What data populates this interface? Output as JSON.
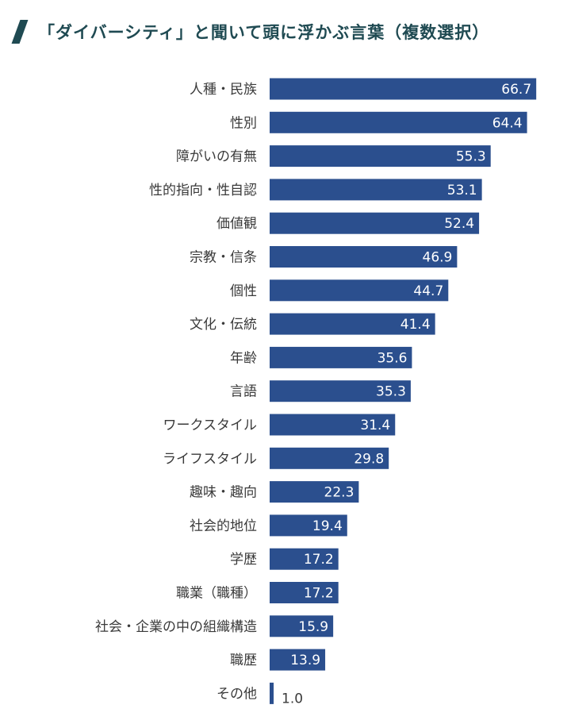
{
  "header": {
    "icon": "slash-icon",
    "accent_color": "#1f4a52",
    "title": "「ダイバーシティ」と聞いて頭に浮かぶ言葉（複数選択）"
  },
  "chart_data": {
    "type": "bar",
    "orientation": "horizontal",
    "title": "「ダイバーシティ」と聞いて頭に浮かぶ言葉（複数選択）",
    "xlabel": "",
    "ylabel": "",
    "bar_color": "#2b4f8e",
    "grid": false,
    "xlim": [
      0,
      70
    ],
    "categories": [
      "人種・民族",
      "性別",
      "障がいの有無",
      "性的指向・性自認",
      "価値観",
      "宗教・信条",
      "個性",
      "文化・伝統",
      "年齢",
      "言語",
      "ワークスタイル",
      "ライフスタイル",
      "趣味・趣向",
      "社会的地位",
      "学歴",
      "職業（職種）",
      "社会・企業の中の組織構造",
      "職歴",
      "その他"
    ],
    "values": [
      66.7,
      64.4,
      55.3,
      53.1,
      52.4,
      46.9,
      44.7,
      41.4,
      35.6,
      35.3,
      31.4,
      29.8,
      22.3,
      19.4,
      17.2,
      17.2,
      15.9,
      13.9,
      1.0
    ],
    "value_labels": [
      "66.7",
      "64.4",
      "55.3",
      "53.1",
      "52.4",
      "46.9",
      "44.7",
      "41.4",
      "35.6",
      "35.3",
      "31.4",
      "29.8",
      "22.3",
      "19.4",
      "17.2",
      "17.2",
      "15.9",
      "13.9",
      "1.0"
    ]
  }
}
